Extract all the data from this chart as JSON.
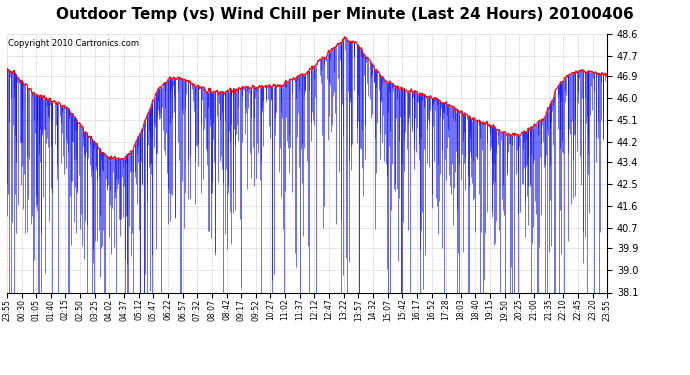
{
  "title": "Outdoor Temp (vs) Wind Chill per Minute (Last 24 Hours) 20100406",
  "copyright": "Copyright 2010 Cartronics.com",
  "ylim": [
    38.1,
    48.6
  ],
  "yticks": [
    38.1,
    39.0,
    39.9,
    40.7,
    41.6,
    42.5,
    43.4,
    44.2,
    45.1,
    46.0,
    46.9,
    47.7,
    48.6
  ],
  "x_labels": [
    "23:55",
    "00:30",
    "01:05",
    "01:40",
    "02:15",
    "02:50",
    "03:25",
    "04:02",
    "04:37",
    "05:12",
    "05:47",
    "06:22",
    "06:57",
    "07:32",
    "08:07",
    "08:42",
    "09:17",
    "09:52",
    "10:27",
    "11:02",
    "11:37",
    "12:12",
    "12:47",
    "13:22",
    "13:57",
    "14:32",
    "15:07",
    "15:42",
    "16:17",
    "16:52",
    "17:28",
    "18:03",
    "18:40",
    "19:15",
    "19:50",
    "20:25",
    "21:00",
    "21:35",
    "22:10",
    "22:45",
    "23:20",
    "23:55"
  ],
  "bg_color": "#ffffff",
  "grid_color": "#aaaaaa",
  "temp_color": "#ff0000",
  "wind_color": "#0000ff",
  "title_fontsize": 11,
  "copyright_fontsize": 6,
  "temp_knots_x": [
    0,
    0.5,
    1.0,
    1.5,
    2.0,
    2.5,
    3.0,
    3.5,
    4.0,
    4.5,
    5.0,
    5.5,
    6.0,
    6.5,
    7.0,
    7.5,
    8.0,
    8.5,
    9.0,
    9.5,
    10.0,
    10.5,
    11.0,
    11.5,
    12.0,
    12.5,
    13.0,
    13.5,
    14.0,
    14.5,
    15.0,
    15.5,
    16.0,
    16.5,
    17.0,
    17.5,
    18.0,
    18.5,
    19.0,
    19.5,
    20.0,
    20.5,
    21.0,
    21.5,
    22.0,
    22.5,
    23.0,
    23.5,
    24.0
  ],
  "temp_knots_y": [
    47.2,
    46.8,
    46.2,
    46.0,
    45.8,
    45.5,
    44.8,
    44.2,
    43.6,
    43.5,
    43.8,
    45.0,
    46.3,
    46.8,
    46.8,
    46.5,
    46.3,
    46.2,
    46.3,
    46.4,
    46.4,
    46.5,
    46.5,
    46.8,
    47.0,
    47.5,
    48.0,
    48.4,
    48.2,
    47.5,
    46.8,
    46.5,
    46.3,
    46.2,
    46.0,
    45.8,
    45.5,
    45.2,
    45.0,
    44.8,
    44.5,
    44.5,
    44.8,
    45.2,
    46.4,
    47.0,
    47.1,
    47.0,
    46.9
  ]
}
